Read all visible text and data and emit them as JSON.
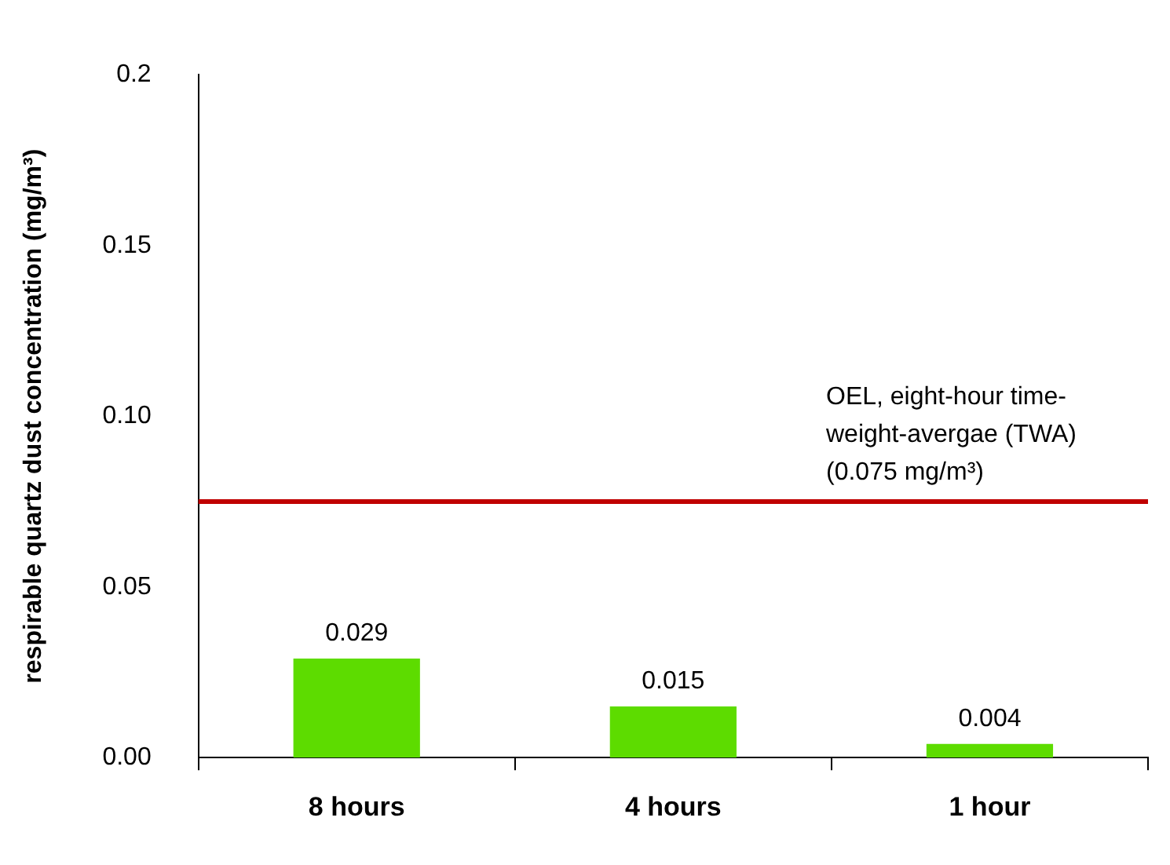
{
  "chart_data": {
    "type": "bar",
    "ylabel": "respirable quartz dust concentration (mg/m³)",
    "categories": [
      "8 hours",
      "4 hours",
      "1 hour"
    ],
    "values": [
      0.029,
      0.015,
      0.004
    ],
    "color": "#5ddc00",
    "ylim": [
      0,
      0.2
    ],
    "yticks": [
      {
        "value": 0,
        "label": "0.00"
      },
      {
        "value": 0.05,
        "label": "0.05"
      },
      {
        "value": 0.1,
        "label": "0.10"
      },
      {
        "value": 0.15,
        "label": "0.15"
      },
      0.2
    ],
    "ref_lines": [
      {
        "axis": "y",
        "value": 0.075,
        "label": "OEL, eight-hour time-weight-avergae (TWA) (0.075 mg/m³)",
        "color": "#c00000"
      }
    ],
    "data_labels": true,
    "grid": false,
    "legend": false
  }
}
